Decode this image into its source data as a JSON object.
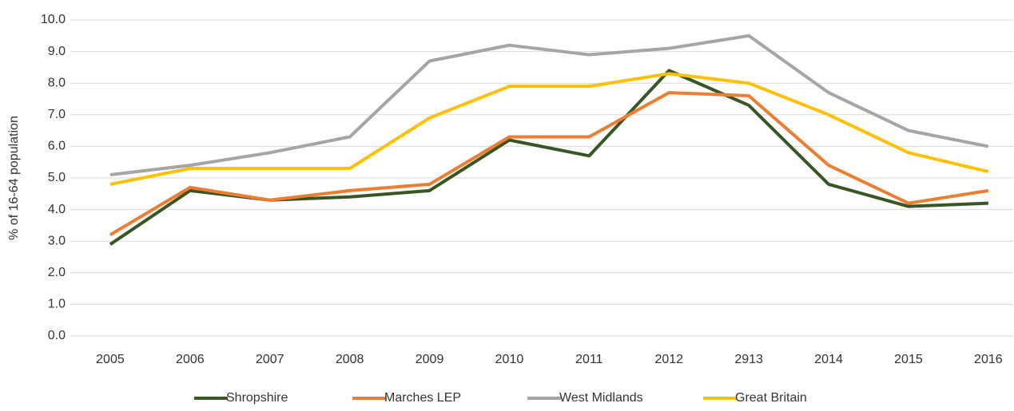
{
  "chart_data": {
    "type": "line",
    "y_label": "% of 16-64 population",
    "categories": [
      "2005",
      "2006",
      "2007",
      "2008",
      "2009",
      "2010",
      "2011",
      "2012",
      "2913",
      "2014",
      "2015",
      "2016"
    ],
    "series": [
      {
        "name": "Shropshire",
        "color": "#375623",
        "values": [
          2.9,
          4.6,
          4.3,
          4.4,
          4.6,
          6.2,
          5.7,
          8.4,
          7.3,
          4.8,
          4.1,
          4.2
        ]
      },
      {
        "name": "Marches LEP",
        "color": "#ed7d31",
        "values": [
          3.2,
          4.7,
          4.3,
          4.6,
          4.8,
          6.3,
          6.3,
          7.7,
          7.6,
          5.4,
          4.2,
          4.6
        ]
      },
      {
        "name": "West Midlands",
        "color": "#a5a5a5",
        "values": [
          5.1,
          5.4,
          5.8,
          6.3,
          8.7,
          9.2,
          8.9,
          9.1,
          9.5,
          7.7,
          6.5,
          6.0
        ]
      },
      {
        "name": "Great Britain",
        "color": "#ffc000",
        "values": [
          4.8,
          5.3,
          5.3,
          5.3,
          6.9,
          7.9,
          7.9,
          8.3,
          8.0,
          7.0,
          5.8,
          5.2
        ]
      }
    ],
    "ylim": [
      0,
      10
    ],
    "yticks": [
      {
        "value": 0,
        "label": "0.0"
      },
      {
        "value": 1,
        "label": "1.0"
      },
      {
        "value": 2,
        "label": "2.0"
      },
      {
        "value": 3,
        "label": "3.0"
      },
      {
        "value": 4,
        "label": "4.0"
      },
      {
        "value": 5,
        "label": "5.0"
      },
      {
        "value": 6,
        "label": "6.0"
      },
      {
        "value": 7,
        "label": "7.0"
      },
      {
        "value": 8,
        "label": "8.0"
      },
      {
        "value": 9,
        "label": "9.0"
      },
      {
        "value": 10,
        "label": "10.0"
      }
    ],
    "grid": true,
    "legend": "bottom"
  }
}
